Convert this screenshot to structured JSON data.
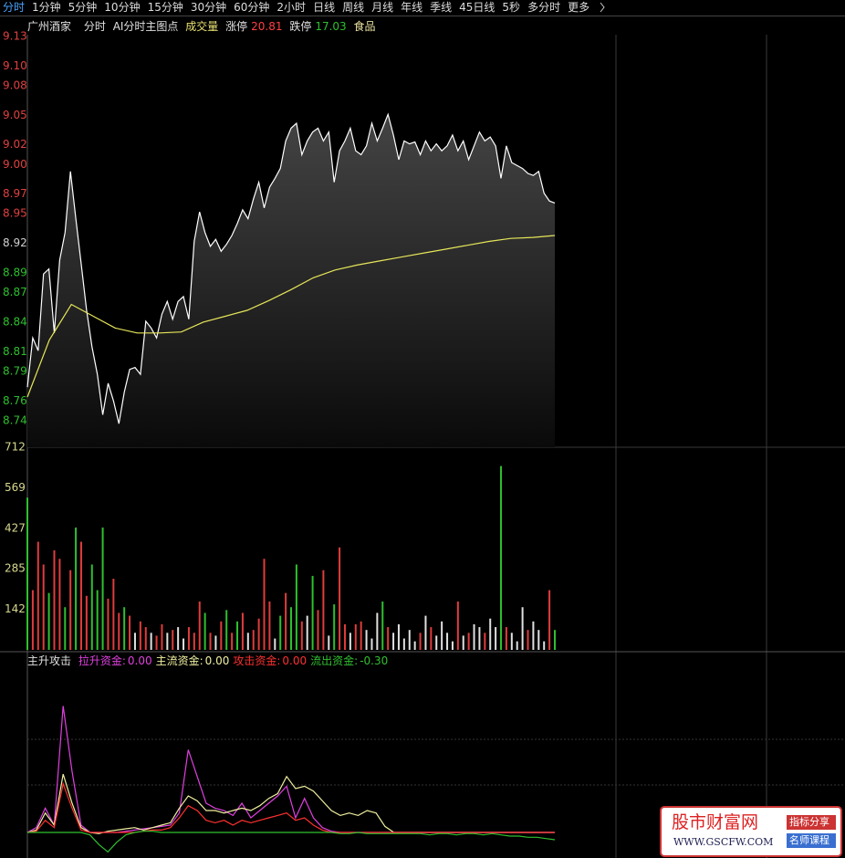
{
  "toolbar": {
    "tabs": [
      "分时",
      "1分钟",
      "5分钟",
      "10分钟",
      "15分钟",
      "30分钟",
      "60分钟",
      "2小时",
      "日线",
      "周线",
      "月线",
      "年线",
      "季线",
      "45日线",
      "5秒",
      "多分时",
      "更多"
    ],
    "active": 0
  },
  "header": {
    "name": "广州酒家",
    "mode": "分时",
    "indicator": "AI分时主图点",
    "volume_label": "成交量",
    "limit_up_label": "涨停",
    "limit_up": "20.81",
    "limit_down_label": "跌停",
    "limit_down": "17.03",
    "sector": "食品"
  },
  "watermark": {
    "site": "股市财富网",
    "url": "WWW.GSCFW.COM",
    "tag1": "指标分享",
    "tag2": "名师课程"
  },
  "chart_data": [
    {
      "type": "line",
      "ylim": [
        8.713,
        9.13
      ],
      "yticks": [
        {
          "value": 9.13,
          "label": "9.13",
          "color": "#e04040"
        },
        {
          "value": 9.1,
          "label": "9.10",
          "color": "#e04040"
        },
        {
          "value": 9.08,
          "label": "9.08",
          "color": "#e04040"
        },
        {
          "value": 9.05,
          "label": "9.05",
          "color": "#e04040"
        },
        {
          "value": 9.02,
          "label": "9.02",
          "color": "#e04040"
        },
        {
          "value": 9.0,
          "label": "9.00",
          "color": "#e04040"
        },
        {
          "value": 8.97,
          "label": "8.97",
          "color": "#e04040"
        },
        {
          "value": 8.95,
          "label": "8.95",
          "color": "#e04040"
        },
        {
          "value": 8.92,
          "label": "8.92",
          "color": "#d0d0d0"
        },
        {
          "value": 8.89,
          "label": "8.89",
          "color": "#2ec02e"
        },
        {
          "value": 8.87,
          "label": "8.87",
          "color": "#2ec02e"
        },
        {
          "value": 8.84,
          "label": "8.84",
          "color": "#2ec02e"
        },
        {
          "value": 8.81,
          "label": "8.81",
          "color": "#2ec02e"
        },
        {
          "value": 8.79,
          "label": "8.79",
          "color": "#2ec02e"
        },
        {
          "value": 8.76,
          "label": "8.76",
          "color": "#2ec02e"
        },
        {
          "value": 8.74,
          "label": "8.74",
          "color": "#2ec02e"
        }
      ],
      "series": [
        {
          "color": "#ffffff",
          "fill": true,
          "values": [
            8.774,
            8.824,
            8.811,
            8.889,
            8.894,
            8.829,
            8.903,
            8.931,
            8.993,
            8.945,
            8.899,
            8.852,
            8.815,
            8.787,
            8.746,
            8.778,
            8.76,
            8.737,
            8.769,
            8.792,
            8.794,
            8.787,
            8.841,
            8.834,
            8.824,
            8.848,
            8.861,
            8.843,
            8.861,
            8.866,
            8.843,
            8.922,
            8.952,
            8.931,
            8.917,
            8.924,
            8.912,
            8.919,
            8.928,
            8.94,
            8.954,
            8.945,
            8.965,
            8.982,
            8.956,
            8.977,
            8.986,
            8.996,
            9.024,
            9.037,
            9.042,
            9.01,
            9.024,
            9.033,
            9.037,
            9.024,
            9.033,
            8.982,
            9.014,
            9.024,
            9.037,
            9.014,
            9.01,
            9.019,
            9.042,
            9.024,
            9.037,
            9.051,
            9.03,
            9.005,
            9.024,
            9.021,
            9.023,
            9.01,
            9.024,
            9.014,
            9.021,
            9.014,
            9.019,
            9.03,
            9.014,
            9.024,
            9.005,
            9.019,
            9.033,
            9.024,
            9.028,
            9.019,
            8.986,
            9.019,
            9.002,
            8.999,
            8.996,
            8.991,
            8.989,
            8.993,
            8.971,
            8.963,
            8.961
          ]
        },
        {
          "color": "#e6e65a",
          "fill": false,
          "values": [
            8.764,
            8.822,
            8.858,
            8.846,
            8.834,
            8.829,
            8.829,
            8.83,
            8.84,
            8.846,
            8.852,
            8.862,
            8.873,
            8.885,
            8.893,
            8.898,
            8.902,
            8.906,
            8.91,
            8.914,
            8.918,
            8.922,
            8.925,
            8.926,
            8.928
          ]
        }
      ]
    },
    {
      "type": "bar",
      "ylim": [
        0,
        712
      ],
      "yticks": [
        142,
        285,
        427,
        569,
        712
      ],
      "tick_color": "#d8d890",
      "values": [
        535,
        210,
        380,
        300,
        200,
        350,
        320,
        150,
        280,
        430,
        380,
        190,
        300,
        210,
        430,
        180,
        250,
        130,
        150,
        120,
        60,
        100,
        80,
        60,
        50,
        90,
        60,
        70,
        80,
        40,
        80,
        60,
        170,
        130,
        60,
        50,
        100,
        140,
        60,
        100,
        130,
        60,
        70,
        110,
        320,
        170,
        40,
        120,
        200,
        150,
        300,
        100,
        120,
        260,
        140,
        280,
        50,
        160,
        360,
        90,
        60,
        90,
        100,
        70,
        40,
        130,
        170,
        80,
        60,
        90,
        40,
        70,
        30,
        60,
        120,
        80,
        50,
        100,
        60,
        30,
        170,
        50,
        60,
        90,
        80,
        60,
        110,
        80,
        646,
        80,
        60,
        30,
        150,
        70,
        100,
        70,
        30,
        210,
        70
      ],
      "colors": [
        "#2ec02e",
        "#e03c3c",
        "#e03c3c",
        "#e03c3c",
        "#2ec02e",
        "#e03c3c",
        "#e03c3c",
        "#2ec02e",
        "#e03c3c",
        "#2ec02e",
        "#e03c3c",
        "#e03c3c",
        "#2ec02e",
        "#2ec02e",
        "#2ec02e",
        "#e03c3c",
        "#e03c3c",
        "#e03c3c",
        "#2ec02e",
        "#e03c3c",
        "#e0e0e0",
        "#e03c3c",
        "#e03c3c",
        "#e0e0e0",
        "#e03c3c",
        "#e03c3c",
        "#e0e0e0",
        "#e03c3c",
        "#e0e0e0",
        "#e0e0e0",
        "#e03c3c",
        "#e03c3c",
        "#e03c3c",
        "#2ec02e",
        "#e03c3c",
        "#e0e0e0",
        "#e03c3c",
        "#2ec02e",
        "#e03c3c",
        "#2ec02e",
        "#e03c3c",
        "#e0e0e0",
        "#e03c3c",
        "#e03c3c",
        "#e03c3c",
        "#e03c3c",
        "#e0e0e0",
        "#2ec02e",
        "#e03c3c",
        "#2ec02e",
        "#2ec02e",
        "#e03c3c",
        "#e0e0e0",
        "#2ec02e",
        "#e03c3c",
        "#e03c3c",
        "#e0e0e0",
        "#2ec02e",
        "#e03c3c",
        "#e03c3c",
        "#e0e0e0",
        "#e03c3c",
        "#e03c3c",
        "#e0e0e0",
        "#e0e0e0",
        "#e0e0e0",
        "#2ec02e",
        "#e03c3c",
        "#e0e0e0",
        "#e0e0e0",
        "#e0e0e0",
        "#e0e0e0",
        "#e0e0e0",
        "#e03c3c",
        "#e0e0e0",
        "#e03c3c",
        "#e0e0e0",
        "#e0e0e0",
        "#e0e0e0",
        "#e0e0e0",
        "#e03c3c",
        "#e0e0e0",
        "#e03c3c",
        "#e0e0e0",
        "#e0e0e0",
        "#e03c3c",
        "#e0e0e0",
        "#e0e0e0",
        "#2ec02e",
        "#e03c3c",
        "#e0e0e0",
        "#e0e0e0",
        "#e0e0e0",
        "#e03c3c",
        "#e0e0e0",
        "#e0e0e0",
        "#e0e0e0",
        "#e03c3c",
        "#2ec02e"
      ]
    },
    {
      "type": "line",
      "title": "主升攻击",
      "ylim": [
        -1.05,
        7.43
      ],
      "series": [
        {
          "name": "拉升资金:",
          "last_label": "0.00",
          "color": "#e040e0",
          "values": [
            0,
            0.2,
            1.0,
            0.3,
            5.2,
            2.5,
            0.3,
            0,
            0,
            0,
            0,
            0.05,
            0.1,
            0.15,
            0.2,
            0.25,
            0.3,
            0.8,
            3.4,
            2.3,
            1.2,
            1.0,
            0.9,
            0.7,
            1.2,
            0.6,
            0.9,
            1.2,
            1.5,
            1.9,
            0.6,
            1.4,
            0.6,
            0.2,
            0.05,
            0,
            0,
            0,
            0,
            0,
            0,
            0,
            0,
            0,
            0,
            0,
            0,
            0,
            0,
            0,
            0,
            0,
            0,
            0,
            0,
            0,
            0,
            0,
            0,
            0
          ]
        },
        {
          "name": "主流资金:",
          "last_label": "0.00",
          "color": "#f0f0a0",
          "values": [
            0,
            0.1,
            0.8,
            0.3,
            2.4,
            1.2,
            0.2,
            0,
            -0.05,
            0.05,
            0.1,
            0.15,
            0.2,
            0.1,
            0.2,
            0.3,
            0.4,
            1.0,
            1.5,
            1.3,
            0.9,
            0.9,
            0.8,
            0.9,
            1.0,
            0.9,
            1.1,
            1.4,
            1.6,
            2.3,
            1.8,
            1.9,
            1.7,
            1.3,
            0.9,
            0.7,
            0.8,
            0.7,
            0.9,
            0.8,
            0.25,
            0,
            0,
            0,
            0,
            0,
            0,
            0,
            0,
            0,
            0,
            0,
            0,
            0,
            0,
            0,
            0,
            0,
            0,
            0
          ]
        },
        {
          "name": "攻击资金:",
          "last_label": "0.00",
          "color": "#ff3030",
          "values": [
            0,
            0.05,
            0.5,
            0.2,
            2.0,
            1.0,
            0.1,
            0,
            0,
            0,
            0,
            0,
            0,
            0.05,
            0.1,
            0.1,
            0.2,
            0.6,
            1.1,
            0.9,
            0.5,
            0.4,
            0.5,
            0.3,
            0.5,
            0.4,
            0.5,
            0.6,
            0.7,
            0.8,
            0.5,
            0.6,
            0.3,
            0.1,
            0,
            0,
            0,
            0,
            0,
            0,
            0,
            0,
            0,
            0,
            0,
            0,
            0,
            0,
            0,
            0,
            0,
            0,
            0,
            0,
            0,
            0,
            0,
            0,
            0,
            0
          ]
        },
        {
          "name": "流出资金:",
          "last_label": "-0.30",
          "color": "#30c030",
          "values": [
            0,
            0,
            0,
            0,
            0,
            0,
            0,
            -0.1,
            -0.5,
            -0.8,
            -0.4,
            -0.1,
            0,
            0.05,
            0.05,
            0,
            0,
            0,
            0,
            0,
            0,
            0,
            0,
            0,
            0,
            0,
            0,
            0,
            0,
            0,
            0,
            0,
            0,
            0,
            0,
            -0.05,
            -0.05,
            0,
            -0.05,
            -0.05,
            -0.05,
            -0.05,
            -0.05,
            -0.05,
            -0.05,
            -0.1,
            -0.05,
            -0.05,
            -0.1,
            -0.05,
            -0.05,
            -0.1,
            -0.05,
            -0.1,
            -0.15,
            -0.15,
            -0.2,
            -0.2,
            -0.25,
            -0.3
          ]
        }
      ]
    }
  ]
}
